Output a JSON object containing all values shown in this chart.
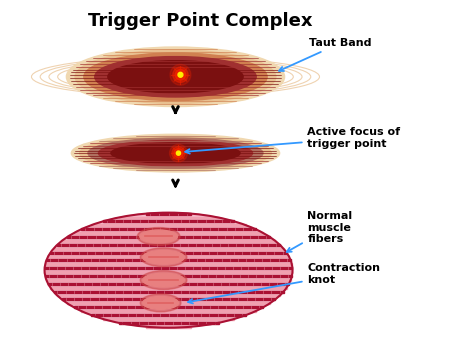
{
  "title": "Trigger Point Complex",
  "title_fontsize": 13,
  "title_fontweight": "bold",
  "bg_color": "#ffffff",
  "labels": {
    "taut_band": "Taut Band",
    "active_focus": "Active focus of\ntrigger point",
    "normal_fibers": "Normal\nmuscle\nfibers",
    "contraction_knot": "Contraction\nknot"
  },
  "label_color": "#000000",
  "label_fontsize": 8,
  "arrow_color": "#3399ff",
  "muscle_dark": "#7B1010",
  "muscle_mid": "#A03030",
  "muscle_light": "#D08050",
  "muscle_outer": "#E8C090",
  "muscle_outer2": "#F0D8B0",
  "stripe_red": "#AA1133",
  "stripe_pink": "#F0A0B0",
  "oval_bg": "#F5B8C8",
  "knot_fill": "#E88080",
  "knot_border": "#CC4444",
  "spot_red": "#EE2200",
  "spot_yellow": "#FFEE00"
}
